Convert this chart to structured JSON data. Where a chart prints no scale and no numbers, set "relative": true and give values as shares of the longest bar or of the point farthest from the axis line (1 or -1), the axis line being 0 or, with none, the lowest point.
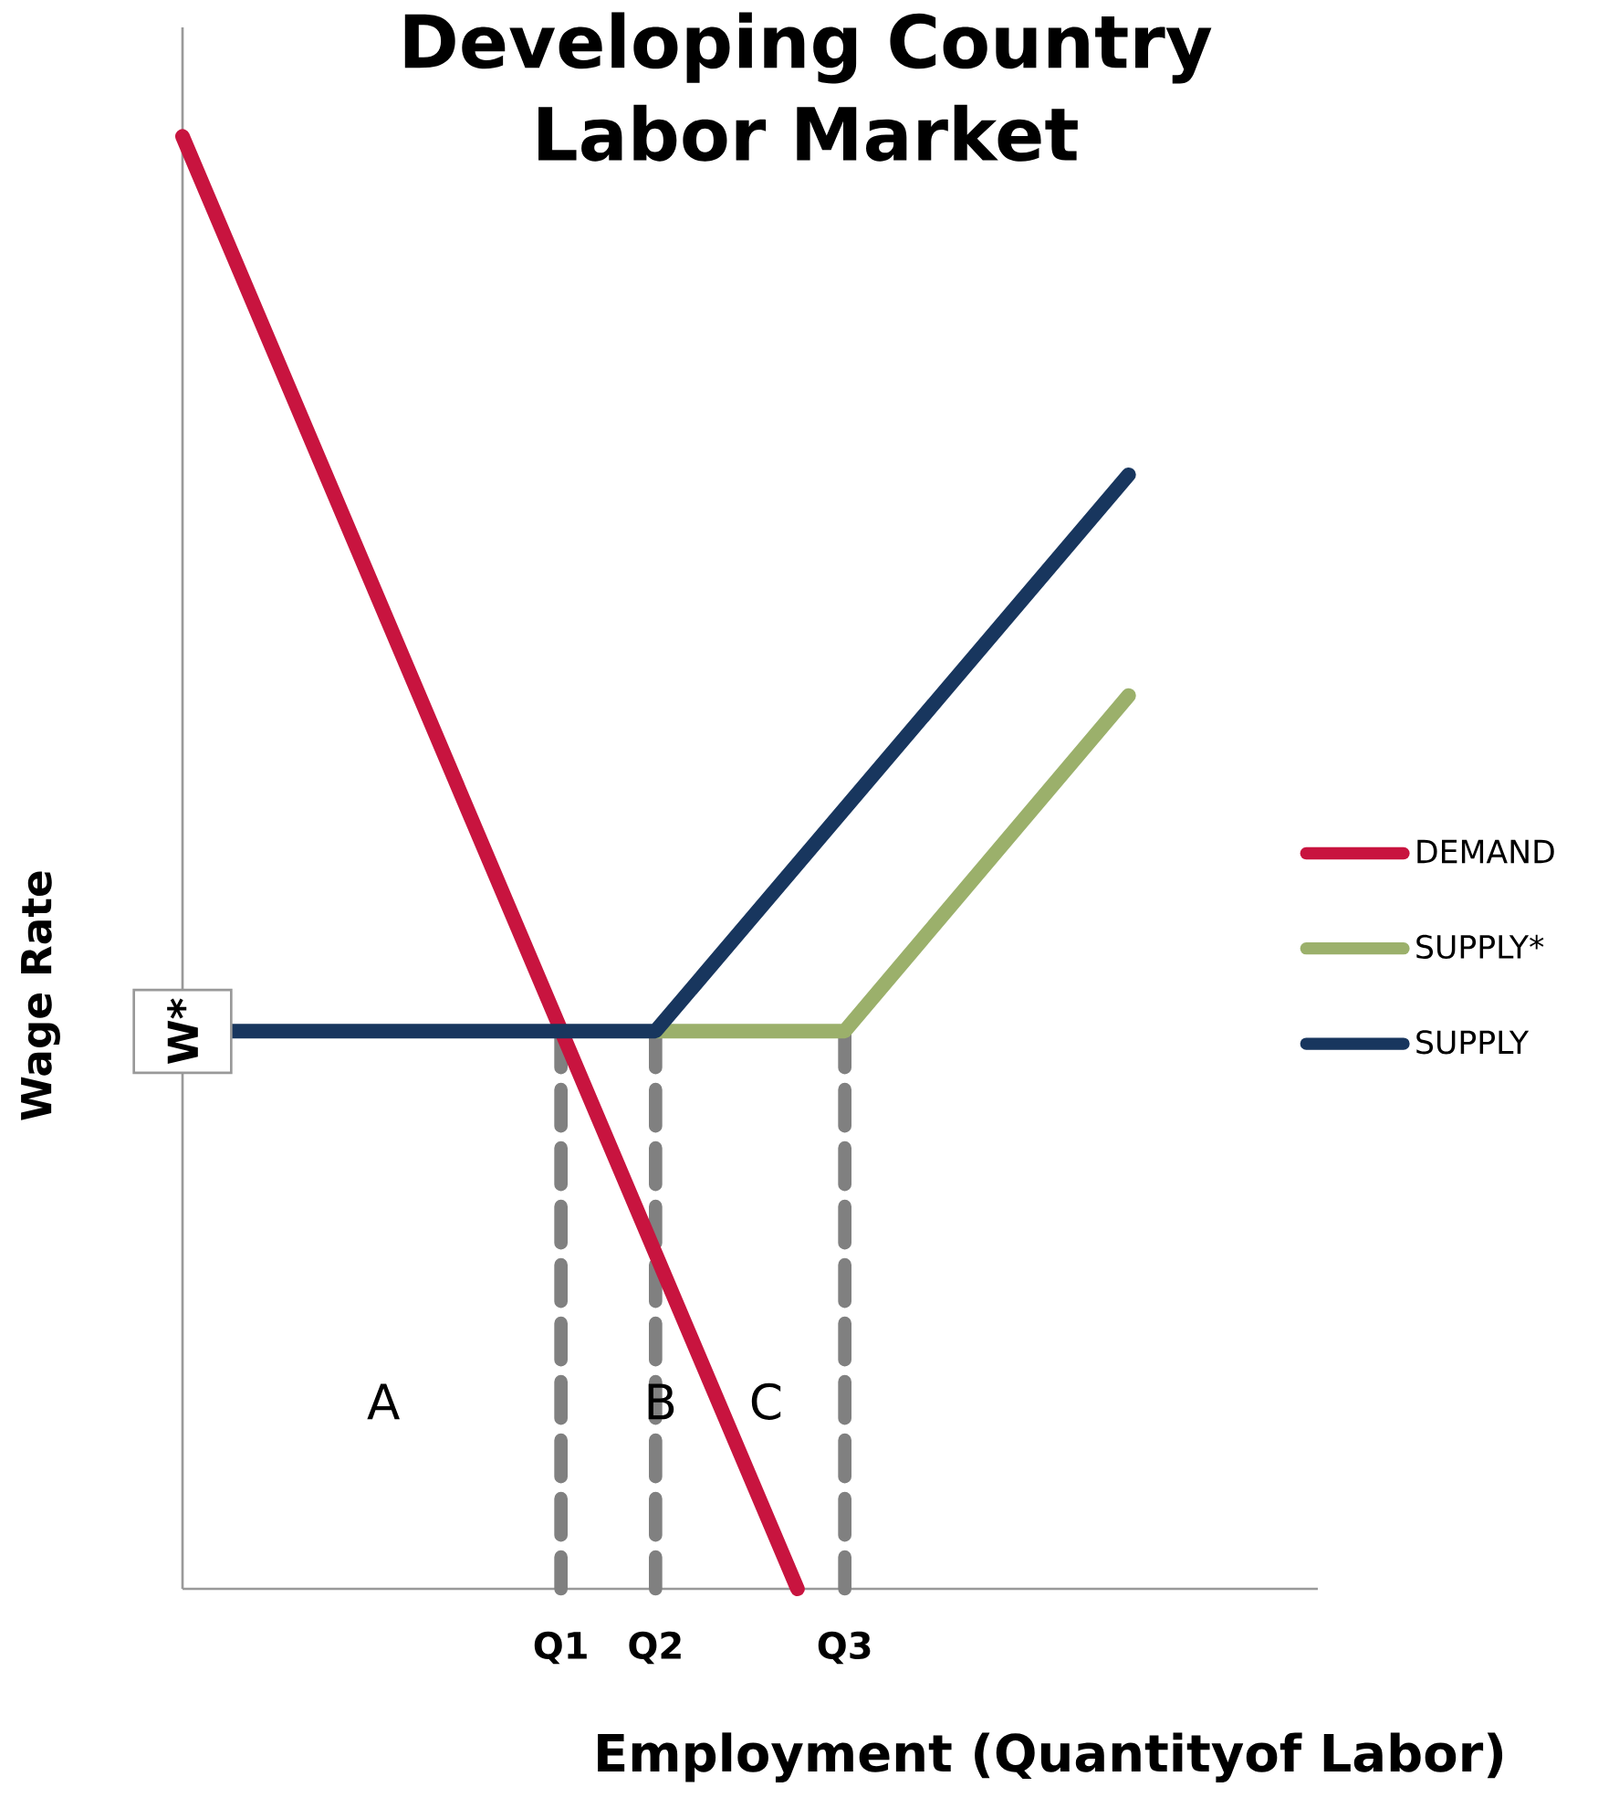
{
  "chart_data": {
    "type": "line",
    "title": "Developing Country Labor Market",
    "xlabel": "Employment (Quantityof Labor)",
    "ylabel": "Wage Rate",
    "relative": true,
    "categories": [
      null,
      null,
      null,
      null,
      null,
      null,
      null,
      null,
      "Q1",
      null,
      "Q2",
      null,
      null,
      null,
      "Q3",
      null,
      null,
      null,
      null,
      null,
      null,
      null,
      null,
      null,
      null
    ],
    "series": [
      {
        "name": "DEMAND",
        "color": "#c8143f",
        "values": [
          1,
          null,
          null,
          null,
          null,
          null,
          null,
          null,
          null,
          null,
          null,
          null,
          null,
          0,
          null,
          null,
          null,
          null,
          null,
          null,
          null,
          null,
          null,
          null,
          null
        ]
      },
      {
        "name": "SUPPLY*",
        "color": "#9bb06b",
        "values": [
          null,
          null,
          null,
          null,
          null,
          null,
          null,
          null,
          null,
          null,
          0.384,
          null,
          null,
          null,
          0.384,
          null,
          null,
          null,
          null,
          null,
          0.615,
          null,
          null,
          null,
          null
        ]
      },
      {
        "name": "SUPPLY",
        "color": "#18365e",
        "values": [
          null,
          0.384,
          null,
          null,
          null,
          null,
          null,
          null,
          null,
          null,
          0.384,
          null,
          null,
          null,
          null,
          null,
          null,
          null,
          null,
          null,
          0.767,
          null,
          null,
          null,
          null
        ]
      }
    ],
    "ref_lines": [
      {
        "axis": "x",
        "value": "Q1",
        "color": "#808080",
        "line_style": "dashed"
      },
      {
        "axis": "x",
        "value": "Q2",
        "color": "#808080",
        "line_style": "dashed"
      },
      {
        "axis": "x",
        "value": "Q3",
        "color": "#808080",
        "line_style": "dashed"
      }
    ],
    "annotations": [
      "W*",
      "A",
      "B",
      "C"
    ],
    "legend": "right",
    "grid": false,
    "line_style": "solid"
  }
}
